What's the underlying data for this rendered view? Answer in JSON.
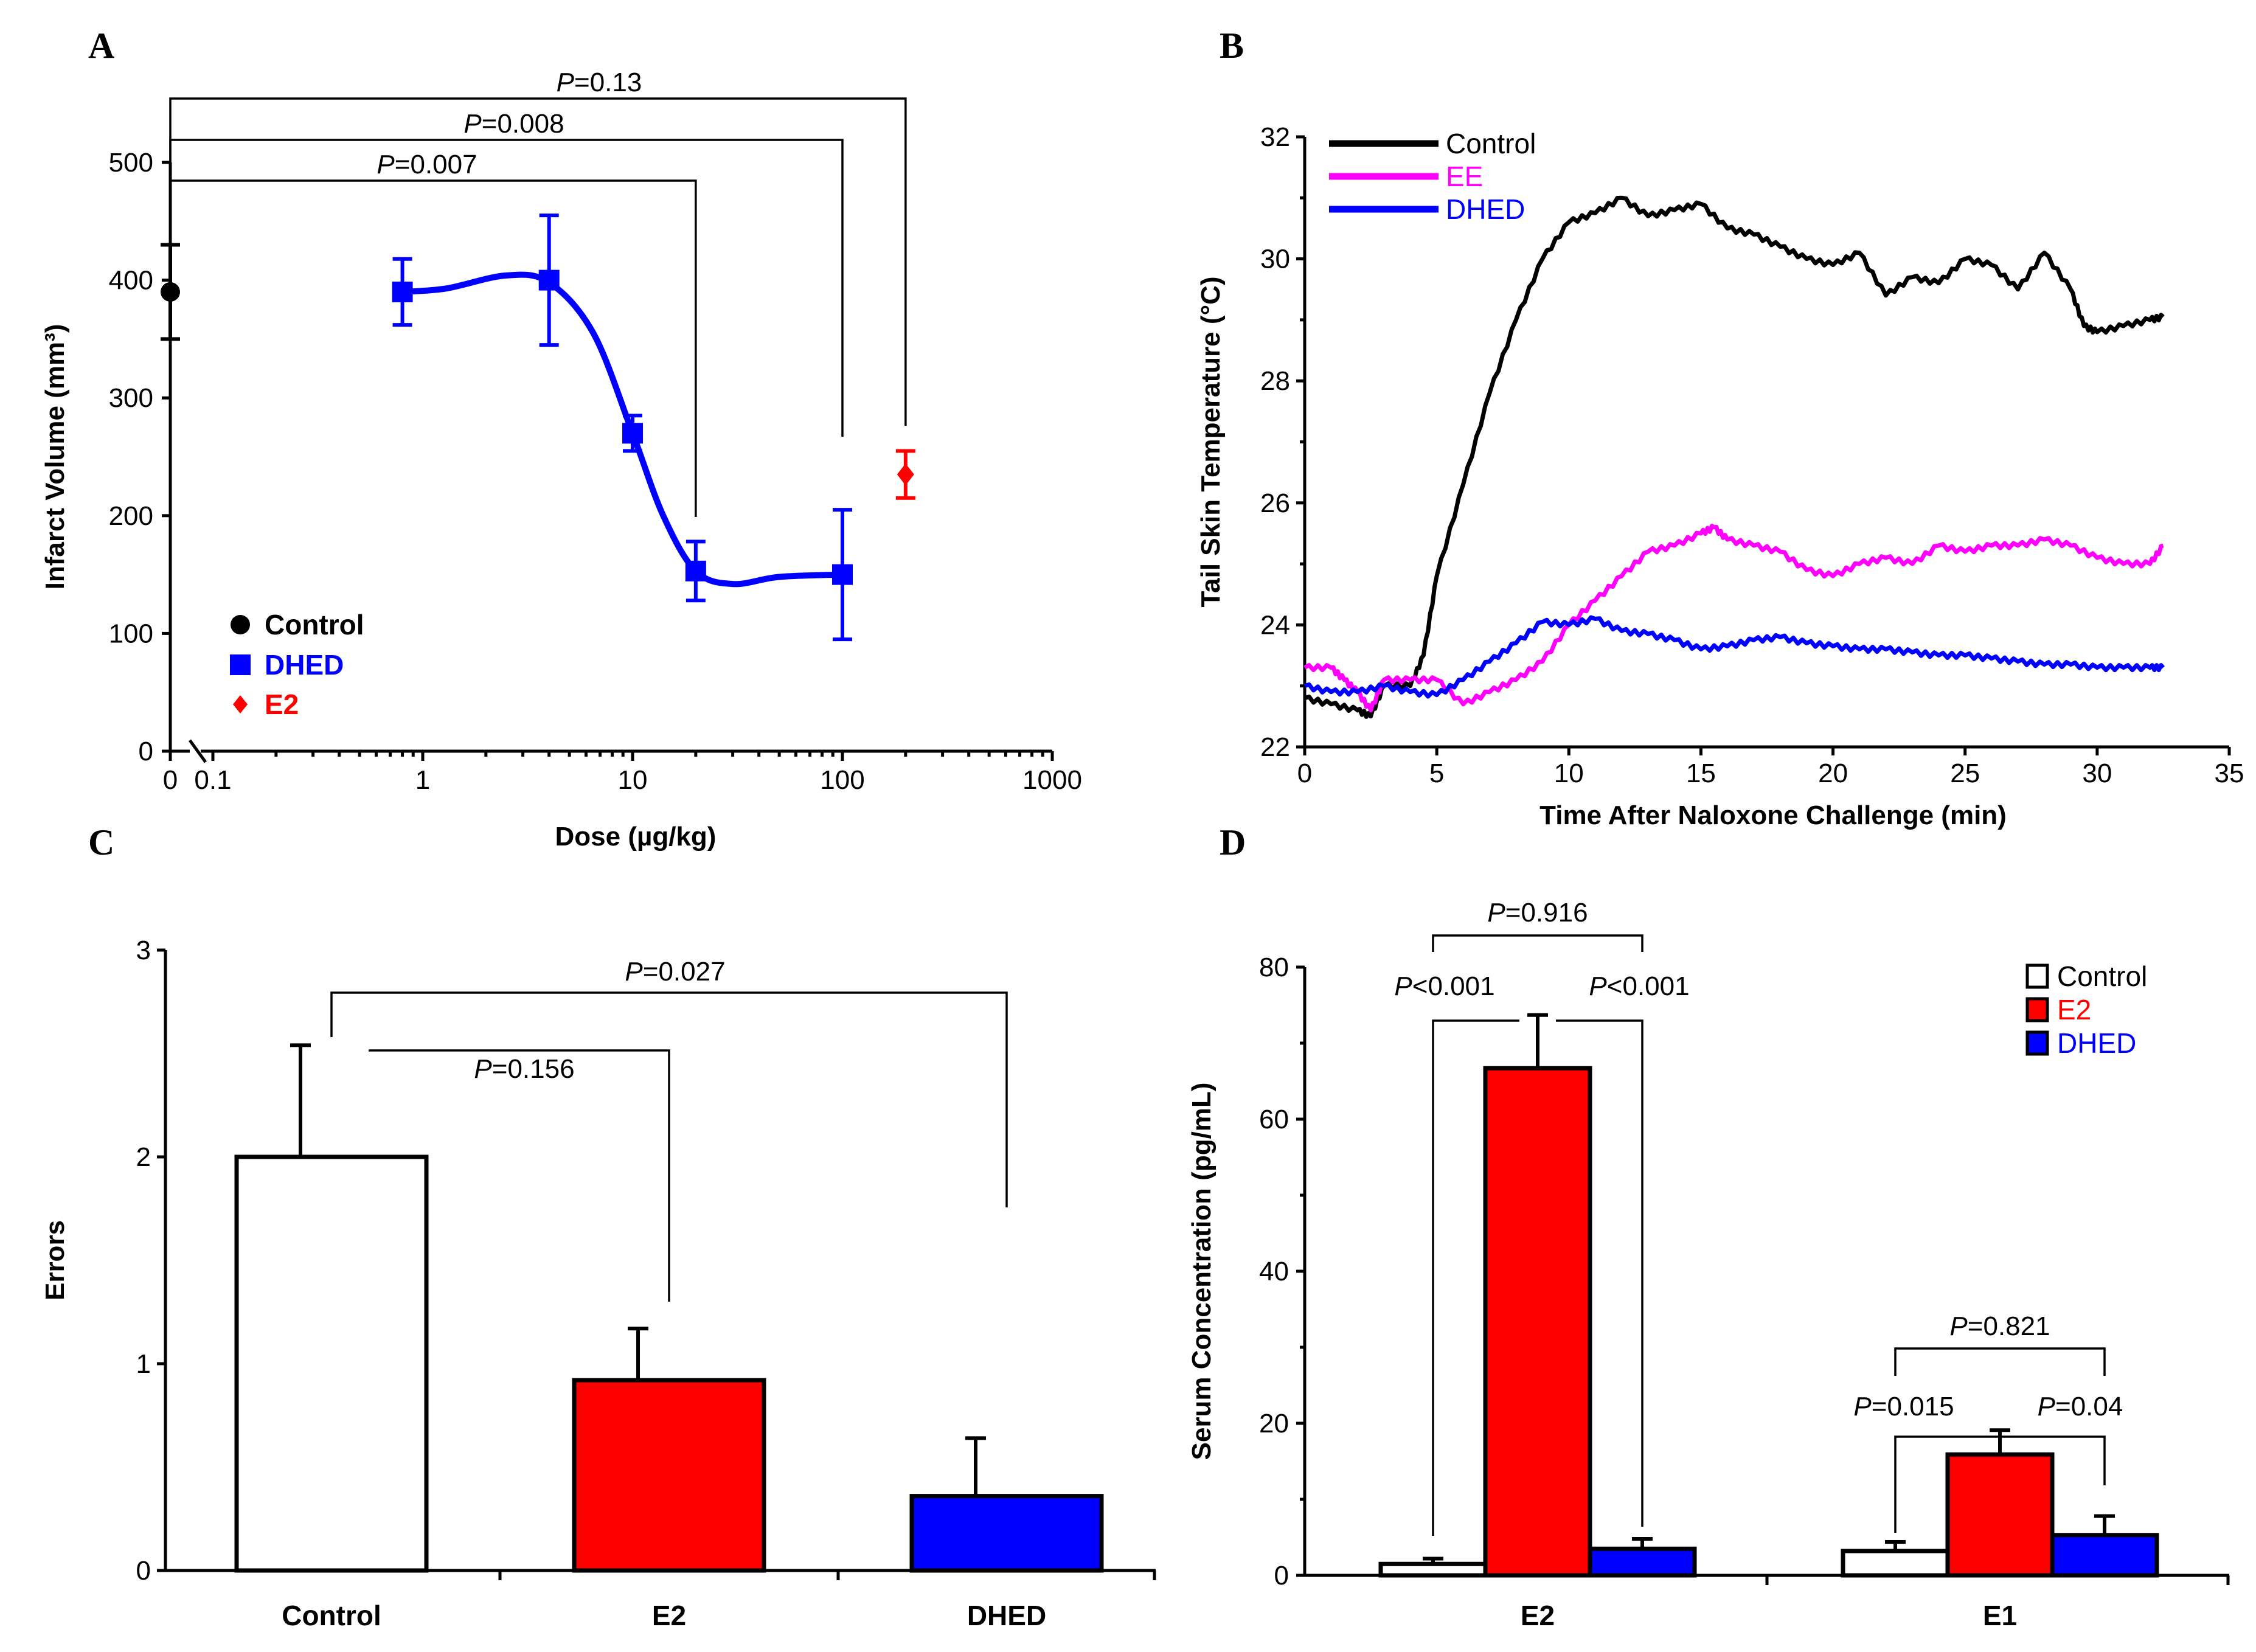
{
  "chart_data": [
    {
      "panel": "A",
      "type": "scatter",
      "xlabel": "Dose (µg/kg)",
      "ylabel": "Infarct Volume (mm³)",
      "x_scale": "log",
      "xlim": [
        0.1,
        1000
      ],
      "ylim": [
        0,
        500
      ],
      "x_tick_labels": [
        "0",
        "0.1",
        "1",
        "10",
        "100",
        "1000"
      ],
      "y_tick_labels": [
        "0",
        "100",
        "200",
        "300",
        "400",
        "500"
      ],
      "series": [
        {
          "name": "Control",
          "color": "#000000",
          "marker": "circle",
          "x": [
            0
          ],
          "y": [
            390
          ],
          "err": [
            40
          ]
        },
        {
          "name": "DHED",
          "color": "#0000ff",
          "marker": "square",
          "x": [
            0.8,
            4,
            10,
            20,
            100
          ],
          "y": [
            390,
            400,
            270,
            153,
            150
          ],
          "err": [
            28,
            55,
            15,
            25,
            55
          ],
          "fit_curve": true
        },
        {
          "name": "E2",
          "color": "#ff0000",
          "marker": "diamond",
          "x": [
            200
          ],
          "y": [
            235
          ],
          "err": [
            20
          ]
        }
      ],
      "comparisons": [
        {
          "label": "P=0.007",
          "from": "Control",
          "to_x": 20
        },
        {
          "label": "P=0.008",
          "from": "Control",
          "to_x": 100
        },
        {
          "label": "P=0.13",
          "from": "Control",
          "to_x": 200
        }
      ],
      "legend": [
        {
          "label": "Control",
          "color": "#000000",
          "marker": "circle"
        },
        {
          "label": "DHED",
          "color": "#0000ff",
          "marker": "square"
        },
        {
          "label": "E2",
          "color": "#ff0000",
          "marker": "diamond"
        }
      ]
    },
    {
      "panel": "B",
      "type": "line",
      "xlabel": "Time After Naloxone Challenge (min)",
      "ylabel": "Tail Skin Temperature (°C)",
      "xlim": [
        0,
        35
      ],
      "ylim": [
        22,
        32
      ],
      "x_tick_labels": [
        "0",
        "5",
        "10",
        "15",
        "20",
        "25",
        "30",
        "35"
      ],
      "y_tick_labels": [
        "22",
        "24",
        "26",
        "28",
        "30",
        "32"
      ],
      "series": [
        {
          "name": "Control",
          "color": "#000000",
          "x": [
            0,
            1,
            2,
            2.5,
            3,
            4,
            4.5,
            5,
            6,
            7,
            8,
            9,
            10,
            11,
            12,
            13,
            14,
            15,
            16,
            17,
            18,
            19,
            20,
            21,
            22,
            23,
            24,
            25,
            26,
            27,
            28,
            29,
            29.5,
            30,
            31,
            32,
            32.5
          ],
          "y": [
            22.8,
            22.7,
            22.6,
            22.5,
            23.0,
            23.0,
            23.5,
            24.8,
            26.3,
            27.8,
            29.0,
            30.0,
            30.6,
            30.75,
            31.0,
            30.7,
            30.8,
            30.9,
            30.5,
            30.4,
            30.2,
            30.0,
            29.9,
            30.1,
            29.4,
            29.7,
            29.6,
            30.0,
            29.9,
            29.5,
            30.1,
            29.5,
            28.9,
            28.8,
            28.9,
            29.0,
            29.05
          ]
        },
        {
          "name": "EE",
          "color": "#ff00ff",
          "x": [
            0,
            1,
            1.5,
            2,
            2.5,
            3,
            4,
            5,
            6,
            7,
            8,
            9,
            10,
            11,
            12,
            13,
            14,
            15,
            15.5,
            16,
            17,
            18,
            19,
            20,
            21,
            22,
            23,
            24,
            25,
            26,
            27,
            28,
            29,
            30,
            31,
            32,
            32.5
          ],
          "y": [
            23.3,
            23.3,
            23.1,
            22.9,
            22.6,
            23.1,
            23.1,
            23.1,
            22.7,
            22.9,
            23.1,
            23.4,
            24.0,
            24.4,
            24.8,
            25.2,
            25.3,
            25.5,
            25.6,
            25.4,
            25.3,
            25.2,
            24.9,
            24.8,
            25.0,
            25.1,
            25.0,
            25.3,
            25.2,
            25.3,
            25.3,
            25.4,
            25.3,
            25.1,
            25.0,
            25.0,
            25.3
          ]
        },
        {
          "name": "DHED",
          "color": "#0000ff",
          "x": [
            0,
            1,
            2,
            3,
            4,
            5,
            6,
            7,
            8,
            9,
            10,
            11,
            12,
            13,
            14,
            15,
            16,
            17,
            18,
            19,
            20,
            21,
            22,
            23,
            24,
            25,
            26,
            27,
            28,
            29,
            30,
            31,
            32,
            32.5
          ],
          "y": [
            23.0,
            22.9,
            22.9,
            23.0,
            22.9,
            22.85,
            23.1,
            23.4,
            23.7,
            24.05,
            24.0,
            24.1,
            23.9,
            23.85,
            23.75,
            23.6,
            23.65,
            23.75,
            23.8,
            23.7,
            23.65,
            23.6,
            23.6,
            23.55,
            23.5,
            23.5,
            23.45,
            23.4,
            23.35,
            23.35,
            23.3,
            23.3,
            23.3,
            23.3
          ]
        }
      ],
      "legend": [
        {
          "label": "Control",
          "color": "#000000"
        },
        {
          "label": "EE",
          "color": "#ff00ff"
        },
        {
          "label": "DHED",
          "color": "#0000ff"
        }
      ]
    },
    {
      "panel": "C",
      "type": "bar",
      "xlabel": "",
      "ylabel": "Errors",
      "ylim": [
        0,
        3
      ],
      "y_tick_labels": [
        "0",
        "1",
        "2",
        "3"
      ],
      "categories": [
        "Control",
        "E2",
        "DHED"
      ],
      "values": [
        2.0,
        0.92,
        0.36
      ],
      "errors": [
        0.54,
        0.25,
        0.28
      ],
      "colors": [
        "#ffffff",
        "#ff0000",
        "#0000ff"
      ],
      "comparisons": [
        {
          "label": "P=0.156",
          "from": "Control",
          "to": "E2"
        },
        {
          "label": "P=0.027",
          "from": "Control",
          "to": "DHED"
        }
      ]
    },
    {
      "panel": "D",
      "type": "bar",
      "xlabel": "",
      "ylabel": "Serum Concentration (pg/mL)",
      "ylim": [
        0,
        80
      ],
      "y_tick_labels": [
        "0",
        "20",
        "40",
        "60",
        "80"
      ],
      "categories": [
        "E2",
        "E1"
      ],
      "series": [
        {
          "name": "Control",
          "color": "#ffffff",
          "values": [
            1.5,
            3.2
          ],
          "errors": [
            0.7,
            1.2
          ]
        },
        {
          "name": "E2",
          "color": "#ff0000",
          "values": [
            66.7,
            15.9
          ],
          "errors": [
            7.0,
            3.2
          ]
        },
        {
          "name": "DHED",
          "color": "#0000ff",
          "values": [
            3.5,
            5.3
          ],
          "errors": [
            1.3,
            2.5
          ]
        }
      ],
      "comparisons": [
        {
          "label": "P=0.916",
          "group": "E2",
          "between": [
            "Control",
            "DHED"
          ]
        },
        {
          "label": "P<0.001",
          "group": "E2",
          "between": [
            "Control",
            "E2"
          ]
        },
        {
          "label": "P<0.001",
          "group": "E2",
          "between": [
            "E2",
            "DHED"
          ]
        },
        {
          "label": "P=0.821",
          "group": "E1",
          "between": [
            "Control",
            "DHED"
          ]
        },
        {
          "label": "P=0.015",
          "group": "E1",
          "between": [
            "Control",
            "E2"
          ]
        },
        {
          "label": "P=0.04",
          "group": "E1",
          "between": [
            "E2",
            "DHED"
          ]
        }
      ],
      "legend": [
        {
          "label": "Control",
          "color": "#ffffff"
        },
        {
          "label": "E2",
          "color": "#ff0000"
        },
        {
          "label": "DHED",
          "color": "#0000ff"
        }
      ]
    }
  ]
}
